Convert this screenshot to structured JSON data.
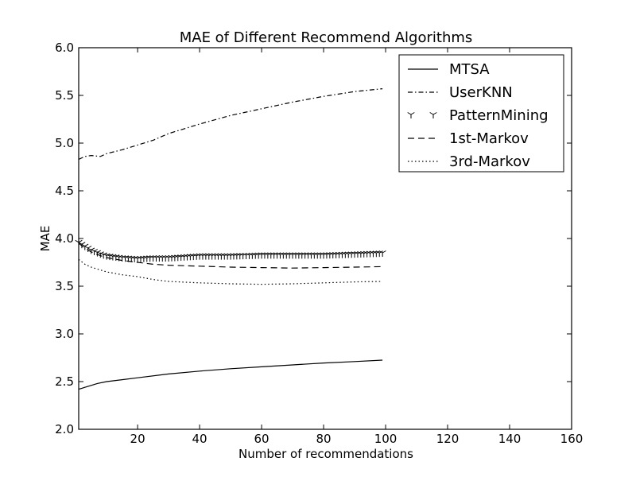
{
  "chart_data": {
    "type": "line",
    "title": "MAE of Different Recommend Algorithms",
    "xlabel": "Number of recommendations",
    "ylabel": "MAE",
    "xlim": [
      1,
      160
    ],
    "ylim": [
      2.0,
      6.0
    ],
    "x_ticks": [
      20,
      40,
      60,
      80,
      100,
      120,
      140,
      160
    ],
    "x_tick_labels": [
      "20",
      "40",
      "60",
      "80",
      "100",
      "120",
      "140",
      "160"
    ],
    "y_ticks": [
      2.0,
      2.5,
      3.0,
      3.5,
      4.0,
      4.5,
      5.0,
      5.5,
      6.0
    ],
    "y_tick_labels": [
      "2.0",
      "2.5",
      "3.0",
      "3.5",
      "4.0",
      "4.5",
      "5.0",
      "5.5",
      "6.0"
    ],
    "grid": false,
    "legend_position": "top-right",
    "series": [
      {
        "name": "MTSA",
        "line_style": "solid",
        "color": "#000000",
        "x": [
          1,
          2,
          3,
          5,
          7,
          10,
          15,
          20,
          30,
          40,
          50,
          60,
          70,
          80,
          90,
          99
        ],
        "y": [
          2.42,
          2.43,
          2.44,
          2.46,
          2.48,
          2.5,
          2.52,
          2.54,
          2.58,
          2.61,
          2.635,
          2.655,
          2.675,
          2.695,
          2.71,
          2.725
        ]
      },
      {
        "name": "UserKNN",
        "line_style": "dashdot",
        "color": "#000000",
        "x": [
          1,
          3,
          5,
          8,
          10,
          15,
          20,
          25,
          30,
          40,
          50,
          60,
          70,
          80,
          90,
          99
        ],
        "y": [
          4.83,
          4.86,
          4.87,
          4.86,
          4.89,
          4.93,
          4.98,
          5.03,
          5.1,
          5.2,
          5.29,
          5.36,
          5.43,
          5.49,
          5.54,
          5.57
        ]
      },
      {
        "name": "PatternMining",
        "line_style": "marker",
        "color": "#000000",
        "x": [
          1,
          3,
          5,
          8,
          10,
          15,
          20,
          25,
          30,
          40,
          50,
          60,
          70,
          80,
          90,
          99
        ],
        "y": [
          3.96,
          3.92,
          3.88,
          3.84,
          3.82,
          3.8,
          3.79,
          3.8,
          3.8,
          3.82,
          3.82,
          3.83,
          3.83,
          3.83,
          3.84,
          3.85
        ]
      },
      {
        "name": "1st-Markov",
        "line_style": "dashed",
        "color": "#000000",
        "x": [
          1,
          3,
          5,
          8,
          10,
          15,
          20,
          25,
          30,
          40,
          50,
          60,
          70,
          80,
          90,
          99
        ],
        "y": [
          3.95,
          3.9,
          3.86,
          3.82,
          3.8,
          3.77,
          3.75,
          3.73,
          3.72,
          3.71,
          3.7,
          3.695,
          3.69,
          3.695,
          3.7,
          3.705
        ]
      },
      {
        "name": "3rd-Markov",
        "line_style": "dotted",
        "color": "#000000",
        "x": [
          1,
          3,
          5,
          8,
          10,
          15,
          20,
          25,
          30,
          40,
          50,
          60,
          70,
          80,
          90,
          99
        ],
        "y": [
          3.78,
          3.73,
          3.7,
          3.67,
          3.65,
          3.62,
          3.6,
          3.57,
          3.55,
          3.535,
          3.525,
          3.52,
          3.525,
          3.535,
          3.545,
          3.55
        ]
      }
    ]
  }
}
